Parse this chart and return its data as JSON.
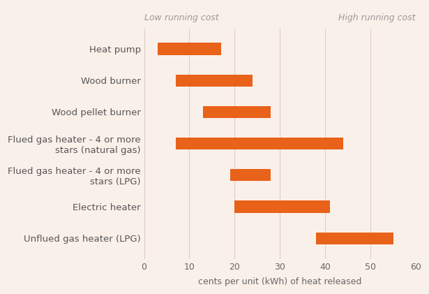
{
  "categories": [
    "Heat pump",
    "Wood burner",
    "Wood pellet burner",
    "Flued gas heater - 4 or more\nstars (natural gas)",
    "Flued gas heater - 4 or more\nstars (LPG)",
    "Electric heater",
    "Unflued gas heater (LPG)"
  ],
  "bar_starts": [
    3,
    7,
    13,
    7,
    19,
    20,
    38
  ],
  "bar_ends": [
    17,
    24,
    28,
    44,
    28,
    41,
    55
  ],
  "bar_color": "#E8621A",
  "background_color": "#FAF0EA",
  "xlabel": "cents per unit (kWh) of heat released",
  "xlim": [
    0,
    60
  ],
  "xticks": [
    0,
    10,
    20,
    30,
    40,
    50,
    60
  ],
  "annotation_left": "Low running cost",
  "annotation_right": "High running cost",
  "grid_color": "#D9C8C0",
  "label_fontsize": 9.5,
  "xlabel_fontsize": 9,
  "annotation_fontsize": 9,
  "tick_fontsize": 9,
  "tick_label_color": "#666666",
  "label_color": "#555555"
}
